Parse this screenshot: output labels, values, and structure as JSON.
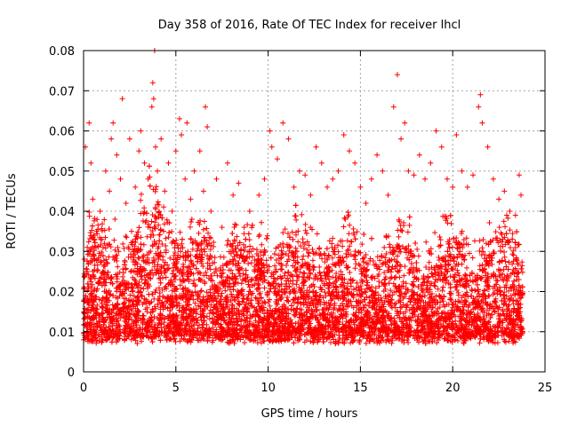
{
  "chart_data": {
    "type": "scatter",
    "title": "Day 358 of 2016, Rate Of TEC Index for receiver lhcl",
    "xlabel": "GPS time / hours",
    "ylabel": "ROTI / TECUs",
    "xlim": [
      0,
      25
    ],
    "ylim": [
      0,
      0.08
    ],
    "x_ticks": [
      "0",
      "5",
      "10",
      "15",
      "20",
      "25"
    ],
    "y_ticks": [
      "0",
      "0.01",
      "0.02",
      "0.03",
      "0.04",
      "0.05",
      "0.06",
      "0.07",
      "0.08"
    ],
    "grid": true,
    "marker": "+",
    "color": "#ff0000",
    "series": [
      {
        "name": "ROTI",
        "points": [
          [
            0.1,
            0.012
          ],
          [
            0.1,
            0.056
          ],
          [
            0.2,
            0.025
          ],
          [
            0.2,
            0.031
          ],
          [
            0.3,
            0.062
          ],
          [
            0.3,
            0.018
          ],
          [
            0.4,
            0.052
          ],
          [
            0.5,
            0.043
          ],
          [
            0.6,
            0.028
          ],
          [
            0.7,
            0.035
          ],
          [
            0.8,
            0.022
          ],
          [
            0.9,
            0.04
          ],
          [
            1.0,
            0.033
          ],
          [
            1.2,
            0.05
          ],
          [
            1.3,
            0.027
          ],
          [
            1.4,
            0.045
          ],
          [
            1.5,
            0.058
          ],
          [
            1.6,
            0.062
          ],
          [
            1.7,
            0.038
          ],
          [
            1.8,
            0.054
          ],
          [
            1.9,
            0.03
          ],
          [
            2.0,
            0.048
          ],
          [
            2.1,
            0.068
          ],
          [
            2.3,
            0.042
          ],
          [
            2.5,
            0.058
          ],
          [
            2.6,
            0.035
          ],
          [
            2.8,
            0.046
          ],
          [
            3.0,
            0.055
          ],
          [
            3.1,
            0.06
          ],
          [
            3.3,
            0.052
          ],
          [
            3.5,
            0.048
          ],
          [
            3.7,
            0.066
          ],
          [
            3.75,
            0.072
          ],
          [
            3.8,
            0.068
          ],
          [
            3.85,
            0.08
          ],
          [
            3.9,
            0.056
          ],
          [
            4.0,
            0.05
          ],
          [
            4.2,
            0.058
          ],
          [
            4.4,
            0.045
          ],
          [
            4.6,
            0.052
          ],
          [
            4.8,
            0.04
          ],
          [
            5.0,
            0.055
          ],
          [
            5.2,
            0.063
          ],
          [
            5.3,
            0.059
          ],
          [
            5.5,
            0.048
          ],
          [
            5.6,
            0.062
          ],
          [
            5.8,
            0.043
          ],
          [
            6.0,
            0.05
          ],
          [
            6.3,
            0.055
          ],
          [
            6.5,
            0.045
          ],
          [
            6.6,
            0.066
          ],
          [
            6.7,
            0.061
          ],
          [
            6.9,
            0.04
          ],
          [
            7.2,
            0.048
          ],
          [
            7.5,
            0.036
          ],
          [
            7.8,
            0.052
          ],
          [
            8.1,
            0.044
          ],
          [
            8.4,
            0.047
          ],
          [
            8.7,
            0.036
          ],
          [
            9.0,
            0.04
          ],
          [
            9.5,
            0.044
          ],
          [
            9.8,
            0.048
          ],
          [
            10.1,
            0.06
          ],
          [
            10.2,
            0.056
          ],
          [
            10.5,
            0.053
          ],
          [
            10.8,
            0.062
          ],
          [
            11.1,
            0.058
          ],
          [
            11.4,
            0.046
          ],
          [
            11.7,
            0.05
          ],
          [
            12.0,
            0.049
          ],
          [
            12.3,
            0.044
          ],
          [
            12.6,
            0.056
          ],
          [
            12.9,
            0.052
          ],
          [
            13.2,
            0.046
          ],
          [
            13.5,
            0.048
          ],
          [
            13.8,
            0.05
          ],
          [
            14.1,
            0.059
          ],
          [
            14.4,
            0.055
          ],
          [
            14.7,
            0.052
          ],
          [
            15.0,
            0.046
          ],
          [
            15.3,
            0.042
          ],
          [
            15.6,
            0.048
          ],
          [
            15.9,
            0.054
          ],
          [
            16.2,
            0.05
          ],
          [
            16.5,
            0.044
          ],
          [
            16.8,
            0.066
          ],
          [
            17.0,
            0.074
          ],
          [
            17.2,
            0.058
          ],
          [
            17.4,
            0.062
          ],
          [
            17.6,
            0.05
          ],
          [
            17.9,
            0.049
          ],
          [
            18.2,
            0.054
          ],
          [
            18.5,
            0.048
          ],
          [
            18.8,
            0.052
          ],
          [
            19.1,
            0.06
          ],
          [
            19.4,
            0.056
          ],
          [
            19.7,
            0.048
          ],
          [
            20.0,
            0.046
          ],
          [
            20.2,
            0.059
          ],
          [
            20.5,
            0.05
          ],
          [
            20.8,
            0.046
          ],
          [
            21.1,
            0.049
          ],
          [
            21.4,
            0.066
          ],
          [
            21.5,
            0.069
          ],
          [
            21.6,
            0.062
          ],
          [
            21.9,
            0.056
          ],
          [
            22.2,
            0.048
          ],
          [
            22.5,
            0.043
          ],
          [
            22.8,
            0.045
          ],
          [
            23.1,
            0.04
          ],
          [
            23.4,
            0.039
          ],
          [
            23.6,
            0.049
          ],
          [
            23.7,
            0.044
          ]
        ]
      }
    ]
  }
}
